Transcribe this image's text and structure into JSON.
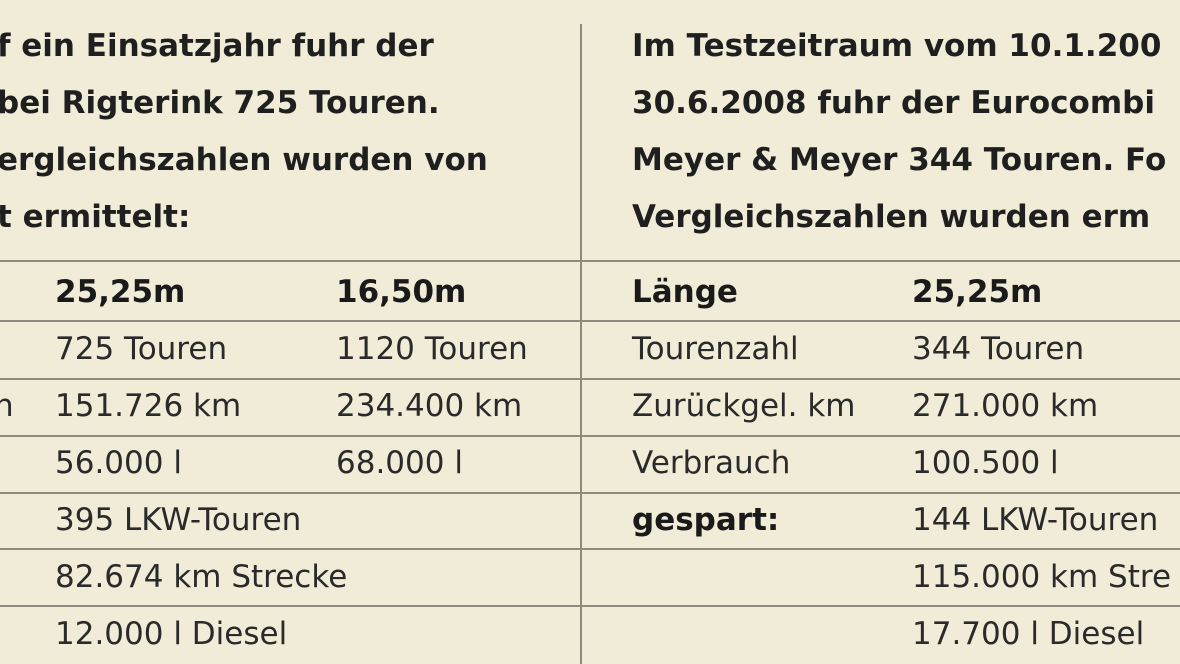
{
  "left": {
    "intro": [
      "f ein Einsatzjahr fuhr der",
      "bei Rigterink 725 Touren.",
      "ergleichszahlen wurden von",
      "t ermittelt:"
    ],
    "header": [
      "25,25m",
      "16,50m"
    ],
    "rows": [
      {
        "label": "",
        "a": "725 Touren",
        "b": "1120 Touren"
      },
      {
        "label": "n",
        "a": "151.726 km",
        "b": "234.400 km"
      },
      {
        "label": "",
        "a": "56.000 l",
        "b": "68.000 l"
      },
      {
        "label": "",
        "a": "395 LKW-Touren",
        "b": ""
      },
      {
        "label": "",
        "a": "82.674 km Strecke",
        "b": ""
      },
      {
        "label": "",
        "a": "12.000 l Diesel",
        "b": ""
      }
    ]
  },
  "right": {
    "intro": [
      "Im Testzeitraum vom 10.1.200",
      "30.6.2008 fuhr der Eurocombi",
      "Meyer & Meyer 344 Touren. Fo",
      "Vergleichszahlen wurden erm"
    ],
    "header": [
      "Länge",
      "25,25m"
    ],
    "rows": [
      {
        "label": "Tourenzahl",
        "a": "344 Touren"
      },
      {
        "label": "Zurückgel. km",
        "a": "271.000 km"
      },
      {
        "label": "Verbrauch",
        "a": "100.500 l"
      },
      {
        "label": "gespart:",
        "a": "144 LKW-Touren"
      },
      {
        "label": "",
        "a": "115.000 km Stre"
      },
      {
        "label": "",
        "a": "17.700 l Diesel"
      }
    ]
  }
}
